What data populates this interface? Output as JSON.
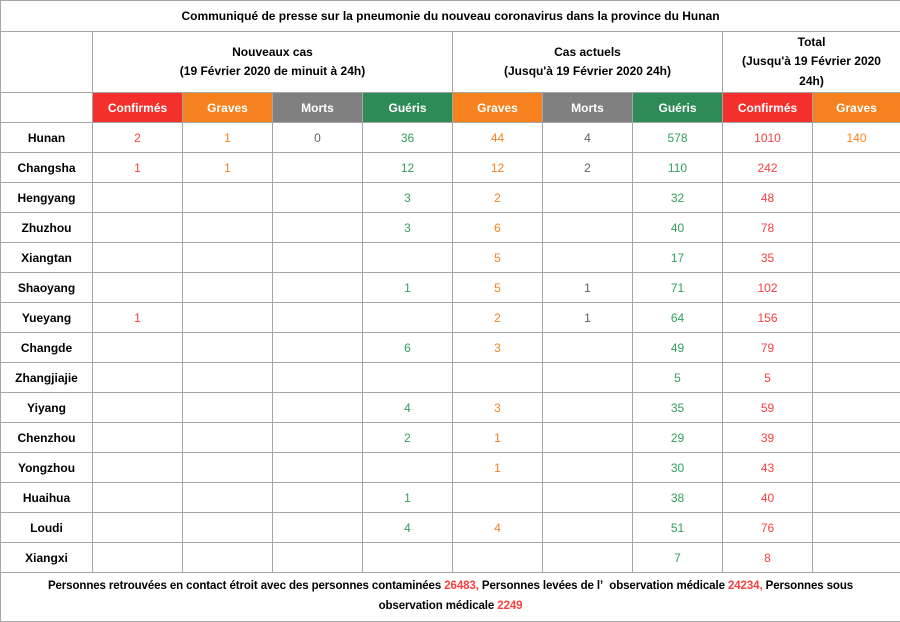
{
  "colors": {
    "red": "#f4302c",
    "orange": "#f5821f",
    "gray": "#808080",
    "green": "#2e8b57",
    "num_red": "#f94040",
    "num_orange": "#f5821f",
    "num_gray": "#5f5f5f",
    "num_green": "#31a05f",
    "border": "#a6a6a6"
  },
  "chart_data": {
    "type": "table",
    "title": "Communiqué de presse sur la pneumonie du nouveau coronavirus dans la province du Hunan",
    "groups": [
      {
        "line1": "Nouveaux cas",
        "line2": "(19 Février 2020 de minuit à 24h)",
        "span": 4
      },
      {
        "line1": "Cas actuels",
        "line2": "(Jusqu'à 19 Février 2020 24h)",
        "span": 3
      },
      {
        "line1": "Total",
        "line2": "(Jusqu'à 19 Février 2020 24h)",
        "span": 2
      }
    ],
    "columns": [
      {
        "label": "Confirmés",
        "key": "nouveaux-confirmes",
        "color": "red"
      },
      {
        "label": "Graves",
        "key": "nouveaux-graves",
        "color": "orange"
      },
      {
        "label": "Morts",
        "key": "nouveaux-morts",
        "color": "gray"
      },
      {
        "label": "Guéris",
        "key": "nouveaux-gueris",
        "color": "green"
      },
      {
        "label": "Graves",
        "key": "actuels-graves",
        "color": "orange"
      },
      {
        "label": "Morts",
        "key": "actuels-morts",
        "color": "gray"
      },
      {
        "label": "Guéris",
        "key": "actuels-gueris",
        "color": "green"
      },
      {
        "label": "Confirmés",
        "key": "total-confirmes",
        "color": "red"
      },
      {
        "label": "Graves",
        "key": "total-graves",
        "color": "orange"
      }
    ],
    "rows": [
      {
        "name": "Hunan",
        "values": [
          "2",
          "1",
          "0",
          "36",
          "44",
          "4",
          "578",
          "1010",
          "140"
        ]
      },
      {
        "name": "Changsha",
        "values": [
          "1",
          "1",
          "",
          "12",
          "12",
          "2",
          "110",
          "242",
          ""
        ]
      },
      {
        "name": "Hengyang",
        "values": [
          "",
          "",
          "",
          "3",
          "2",
          "",
          "32",
          "48",
          ""
        ]
      },
      {
        "name": "Zhuzhou",
        "values": [
          "",
          "",
          "",
          "3",
          "6",
          "",
          "40",
          "78",
          ""
        ]
      },
      {
        "name": "Xiangtan",
        "values": [
          "",
          "",
          "",
          "",
          "5",
          "",
          "17",
          "35",
          ""
        ]
      },
      {
        "name": "Shaoyang",
        "values": [
          "",
          "",
          "",
          "1",
          "5",
          "1",
          "71",
          "102",
          ""
        ]
      },
      {
        "name": "Yueyang",
        "values": [
          "1",
          "",
          "",
          "",
          "2",
          "1",
          "64",
          "156",
          ""
        ]
      },
      {
        "name": "Changde",
        "values": [
          "",
          "",
          "",
          "6",
          "3",
          "",
          "49",
          "79",
          ""
        ]
      },
      {
        "name": "Zhangjiajie",
        "values": [
          "",
          "",
          "",
          "",
          "",
          "",
          "5",
          "5",
          ""
        ]
      },
      {
        "name": "Yiyang",
        "values": [
          "",
          "",
          "",
          "4",
          "3",
          "",
          "35",
          "59",
          ""
        ]
      },
      {
        "name": "Chenzhou",
        "values": [
          "",
          "",
          "",
          "2",
          "1",
          "",
          "29",
          "39",
          ""
        ]
      },
      {
        "name": "Yongzhou",
        "values": [
          "",
          "",
          "",
          "",
          "1",
          "",
          "30",
          "43",
          ""
        ]
      },
      {
        "name": "Huaihua",
        "values": [
          "",
          "",
          "",
          "1",
          "",
          "",
          "38",
          "40",
          ""
        ]
      },
      {
        "name": "Loudi",
        "values": [
          "",
          "",
          "",
          "4",
          "4",
          "",
          "51",
          "76",
          ""
        ]
      },
      {
        "name": "Xiangxi",
        "values": [
          "",
          "",
          "",
          "",
          "",
          "",
          "7",
          "8",
          ""
        ]
      }
    ],
    "footer_segments": [
      {
        "text": "Personnes retrouvées en contact étroit avec des personnes contaminées ",
        "red": false
      },
      {
        "text": "26483,",
        "red": true
      },
      {
        "text": " Personnes levées de l’  observation médicale ",
        "red": false
      },
      {
        "text": "24234,",
        "red": true
      },
      {
        "text": " Personnes sous observation médicale ",
        "red": false
      },
      {
        "text": "2249",
        "red": true
      }
    ]
  }
}
